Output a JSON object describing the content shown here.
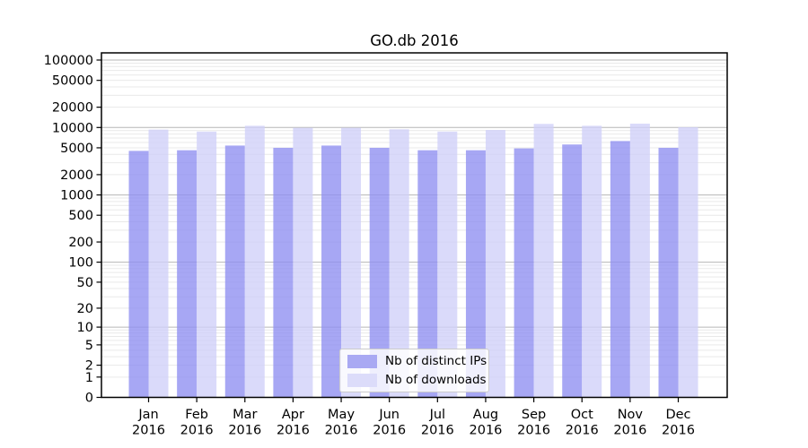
{
  "chart_data": {
    "type": "bar",
    "title": "GO.db 2016",
    "categories": [
      "Jan",
      "Feb",
      "Mar",
      "Apr",
      "May",
      "Jun",
      "Jul",
      "Aug",
      "Sep",
      "Oct",
      "Nov",
      "Dec"
    ],
    "year": "2016",
    "series": [
      {
        "name": "Nb of distinct IPs",
        "color": "#8e8ef1",
        "swatch": "#a9a9f3",
        "values": [
          4500,
          4600,
          5400,
          5000,
          5400,
          5000,
          4600,
          4600,
          4900,
          5600,
          6300,
          5000
        ]
      },
      {
        "name": "Nb of downloads",
        "color": "#d0d0f8",
        "swatch": "#dcdcfa",
        "values": [
          9300,
          8700,
          10600,
          9900,
          9900,
          9400,
          8700,
          9200,
          11300,
          10600,
          11400,
          10100
        ]
      }
    ],
    "y_ticks": [
      0,
      1,
      2,
      5,
      10,
      20,
      50,
      100,
      200,
      500,
      1000,
      2000,
      5000,
      10000,
      20000,
      50000,
      100000
    ],
    "y_scale": "log10(value+1)",
    "ylim": [
      0,
      100000
    ],
    "grid": true,
    "legend_position": "lower center",
    "colors": {
      "axis": "#000000",
      "grid_major": "#b6b6b6",
      "grid_minor": "#e9e9e9",
      "background": "#ffffff",
      "text": "#000000"
    }
  }
}
